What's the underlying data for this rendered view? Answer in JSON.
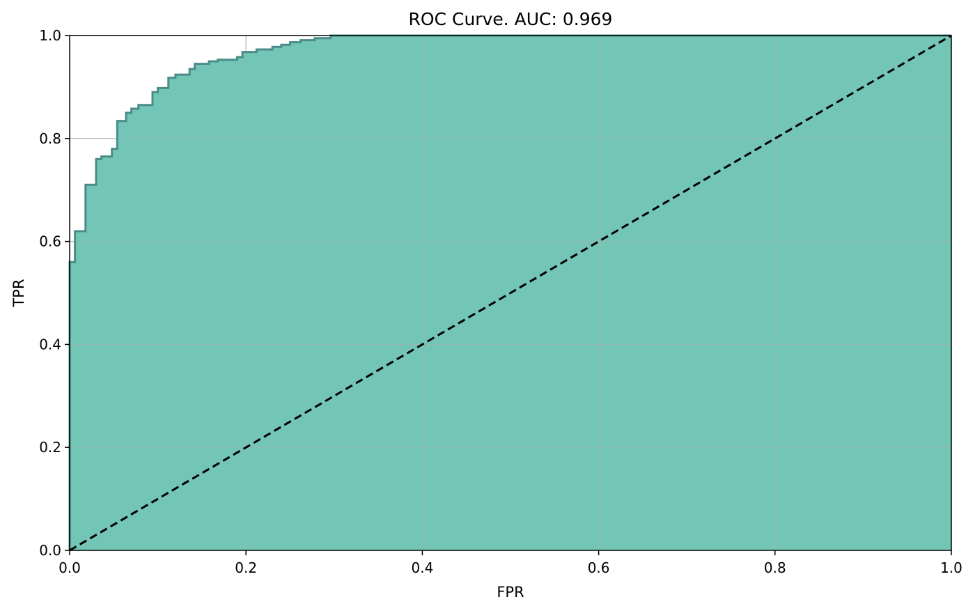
{
  "chart_data": {
    "type": "area",
    "title": "ROC Curve. AUC: 0.969",
    "xlabel": "FPR",
    "ylabel": "TPR",
    "xlim": [
      0,
      1
    ],
    "ylim": [
      0,
      1
    ],
    "xticks": [
      "0.0",
      "0.2",
      "0.4",
      "0.6",
      "0.8",
      "1.0"
    ],
    "yticks": [
      "0.0",
      "0.2",
      "0.4",
      "0.6",
      "0.8",
      "1.0"
    ],
    "grid": true,
    "colors": {
      "fill": "#73c5b5",
      "curve": "#4a8c8a",
      "chance": "#000000",
      "grid": "#b0b0b0"
    },
    "series": [
      {
        "values": [
          [
            0.0,
            0.0
          ],
          [
            0.0,
            0.56
          ],
          [
            0.006,
            0.56
          ],
          [
            0.006,
            0.62
          ],
          [
            0.018,
            0.62
          ],
          [
            0.018,
            0.71
          ],
          [
            0.03,
            0.71
          ],
          [
            0.03,
            0.76
          ],
          [
            0.036,
            0.76
          ],
          [
            0.036,
            0.765
          ],
          [
            0.048,
            0.765
          ],
          [
            0.048,
            0.78
          ],
          [
            0.054,
            0.78
          ],
          [
            0.054,
            0.834
          ],
          [
            0.064,
            0.834
          ],
          [
            0.064,
            0.85
          ],
          [
            0.07,
            0.85
          ],
          [
            0.07,
            0.858
          ],
          [
            0.078,
            0.858
          ],
          [
            0.078,
            0.865
          ],
          [
            0.094,
            0.865
          ],
          [
            0.094,
            0.89
          ],
          [
            0.1,
            0.89
          ],
          [
            0.1,
            0.898
          ],
          [
            0.112,
            0.898
          ],
          [
            0.112,
            0.918
          ],
          [
            0.12,
            0.918
          ],
          [
            0.12,
            0.924
          ],
          [
            0.136,
            0.924
          ],
          [
            0.136,
            0.935
          ],
          [
            0.142,
            0.935
          ],
          [
            0.142,
            0.945
          ],
          [
            0.158,
            0.945
          ],
          [
            0.158,
            0.95
          ],
          [
            0.168,
            0.95
          ],
          [
            0.168,
            0.953
          ],
          [
            0.19,
            0.953
          ],
          [
            0.19,
            0.958
          ],
          [
            0.196,
            0.958
          ],
          [
            0.196,
            0.968
          ],
          [
            0.212,
            0.968
          ],
          [
            0.212,
            0.973
          ],
          [
            0.23,
            0.973
          ],
          [
            0.23,
            0.978
          ],
          [
            0.24,
            0.978
          ],
          [
            0.24,
            0.982
          ],
          [
            0.25,
            0.982
          ],
          [
            0.25,
            0.987
          ],
          [
            0.262,
            0.987
          ],
          [
            0.262,
            0.991
          ],
          [
            0.278,
            0.991
          ],
          [
            0.278,
            0.995
          ],
          [
            0.296,
            0.995
          ],
          [
            0.296,
            1.0
          ],
          [
            1.0,
            1.0
          ]
        ]
      },
      {
        "style": "dashed",
        "values": [
          [
            0,
            0
          ],
          [
            1,
            1
          ]
        ]
      }
    ]
  }
}
